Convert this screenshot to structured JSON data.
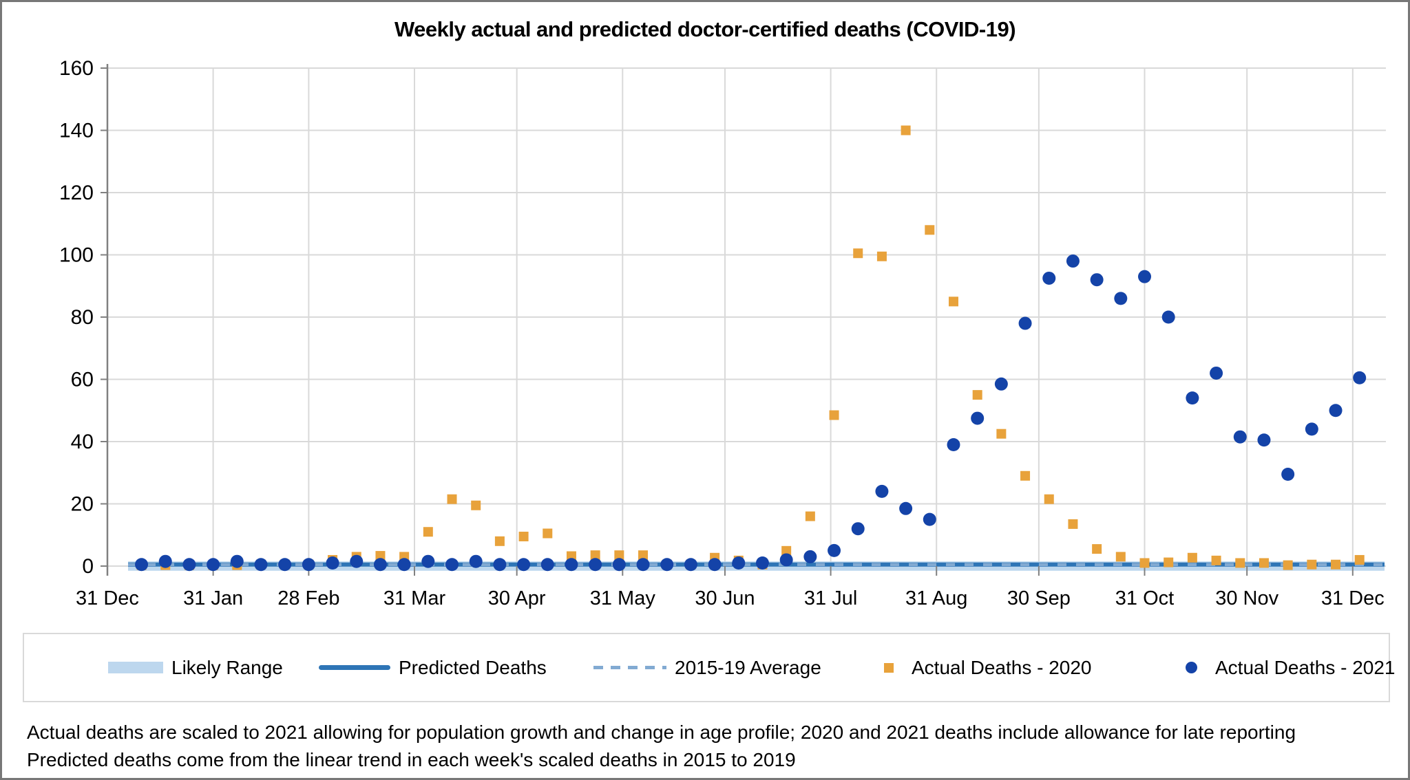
{
  "title": "Weekly actual and predicted doctor-certified deaths (COVID-19)",
  "footnotes": [
    "Actual deaths are scaled to 2021 allowing for population growth and change in age profile; 2020 and 2021 deaths include allowance for late reporting",
    "Predicted deaths come from the linear trend in each week's scaled deaths in 2015 to 2019"
  ],
  "legend": {
    "items": [
      {
        "label": "Likely Range",
        "swatch": "band"
      },
      {
        "label": "Predicted Deaths",
        "swatch": "solid-line"
      },
      {
        "label": "2015-19 Average",
        "swatch": "dashed-line"
      },
      {
        "label": "Actual Deaths - 2020",
        "swatch": "square"
      },
      {
        "label": "Actual Deaths - 2021",
        "swatch": "circle"
      }
    ]
  },
  "colors": {
    "actual_2020": "#E8A23B",
    "actual_2021": "#1443A8",
    "predicted": "#2E75B6",
    "average_2015_19": "#82AAD2",
    "likely_range": "#BDD7EE",
    "gridline": "#D9D9D9",
    "axis": "#808080",
    "text": "#000000",
    "legend_border": "#D9D9D9",
    "frame_border": "#777777"
  },
  "chart_data": {
    "type": "scatter",
    "title": "Weekly actual and predicted doctor-certified deaths (COVID-19)",
    "xlabel": "",
    "ylabel": "",
    "ylim": [
      0,
      160
    ],
    "y_ticks": [
      0,
      20,
      40,
      60,
      80,
      100,
      120,
      140,
      160
    ],
    "grid": true,
    "legend_position": "bottom",
    "x_tick_labels": [
      "31 Dec",
      "31 Jan",
      "28 Feb",
      "31 Mar",
      "30 Apr",
      "31 May",
      "30 Jun",
      "31 Jul",
      "31 Aug",
      "30 Sep",
      "31 Oct",
      "30 Nov",
      "31 Dec"
    ],
    "month_day_offsets": [
      0,
      31,
      59,
      90,
      120,
      151,
      181,
      212,
      243,
      273,
      304,
      334,
      365
    ],
    "weeks": 52,
    "first_point_day": 10,
    "day_spacing": 7,
    "series": [
      {
        "name": "Actual Deaths - 2020",
        "marker": "square",
        "color": "#E8A23B",
        "values": [
          0.3,
          0.3,
          0.3,
          0.3,
          0.3,
          0.5,
          0.5,
          0.5,
          2,
          3,
          3.3,
          3,
          11,
          21.5,
          19.5,
          8,
          9.5,
          10.5,
          3.2,
          3.5,
          3.5,
          3.5,
          0.5,
          0.5,
          2.7,
          1.8,
          0.5,
          4.9,
          16,
          48.5,
          100.5,
          99.5,
          140,
          108,
          85,
          55,
          42.5,
          29,
          21.5,
          13.5,
          5.5,
          3,
          1,
          1.2,
          2.7,
          1.8,
          1,
          1,
          0.3,
          0.5,
          0.5,
          2
        ]
      },
      {
        "name": "Actual Deaths - 2021",
        "marker": "circle",
        "color": "#1443A8",
        "values": [
          0.5,
          1.5,
          0.5,
          0.5,
          1.5,
          0.5,
          0.5,
          0.5,
          1,
          1.5,
          0.5,
          0.5,
          1.5,
          0.5,
          1.5,
          0.5,
          0.5,
          0.5,
          0.5,
          0.5,
          0.5,
          0.5,
          0.5,
          0.5,
          0.5,
          1,
          1,
          2,
          3,
          5,
          12,
          24,
          18.5,
          15,
          39,
          47.5,
          58.5,
          78,
          92.5,
          98,
          92,
          86,
          93,
          80,
          54,
          62,
          41.5,
          40.5,
          29.5,
          44,
          50,
          60.5
        ]
      }
    ],
    "lines": [
      {
        "name": "Predicted Deaths",
        "style": "solid",
        "color": "#2E75B6",
        "value": 0.5
      },
      {
        "name": "2015-19 Average",
        "style": "dashed",
        "color": "#82AAD2",
        "value": 0.5
      }
    ],
    "band": {
      "name": "Likely Range",
      "color": "#BDD7EE",
      "low": -1.5,
      "high": 1.5
    }
  }
}
